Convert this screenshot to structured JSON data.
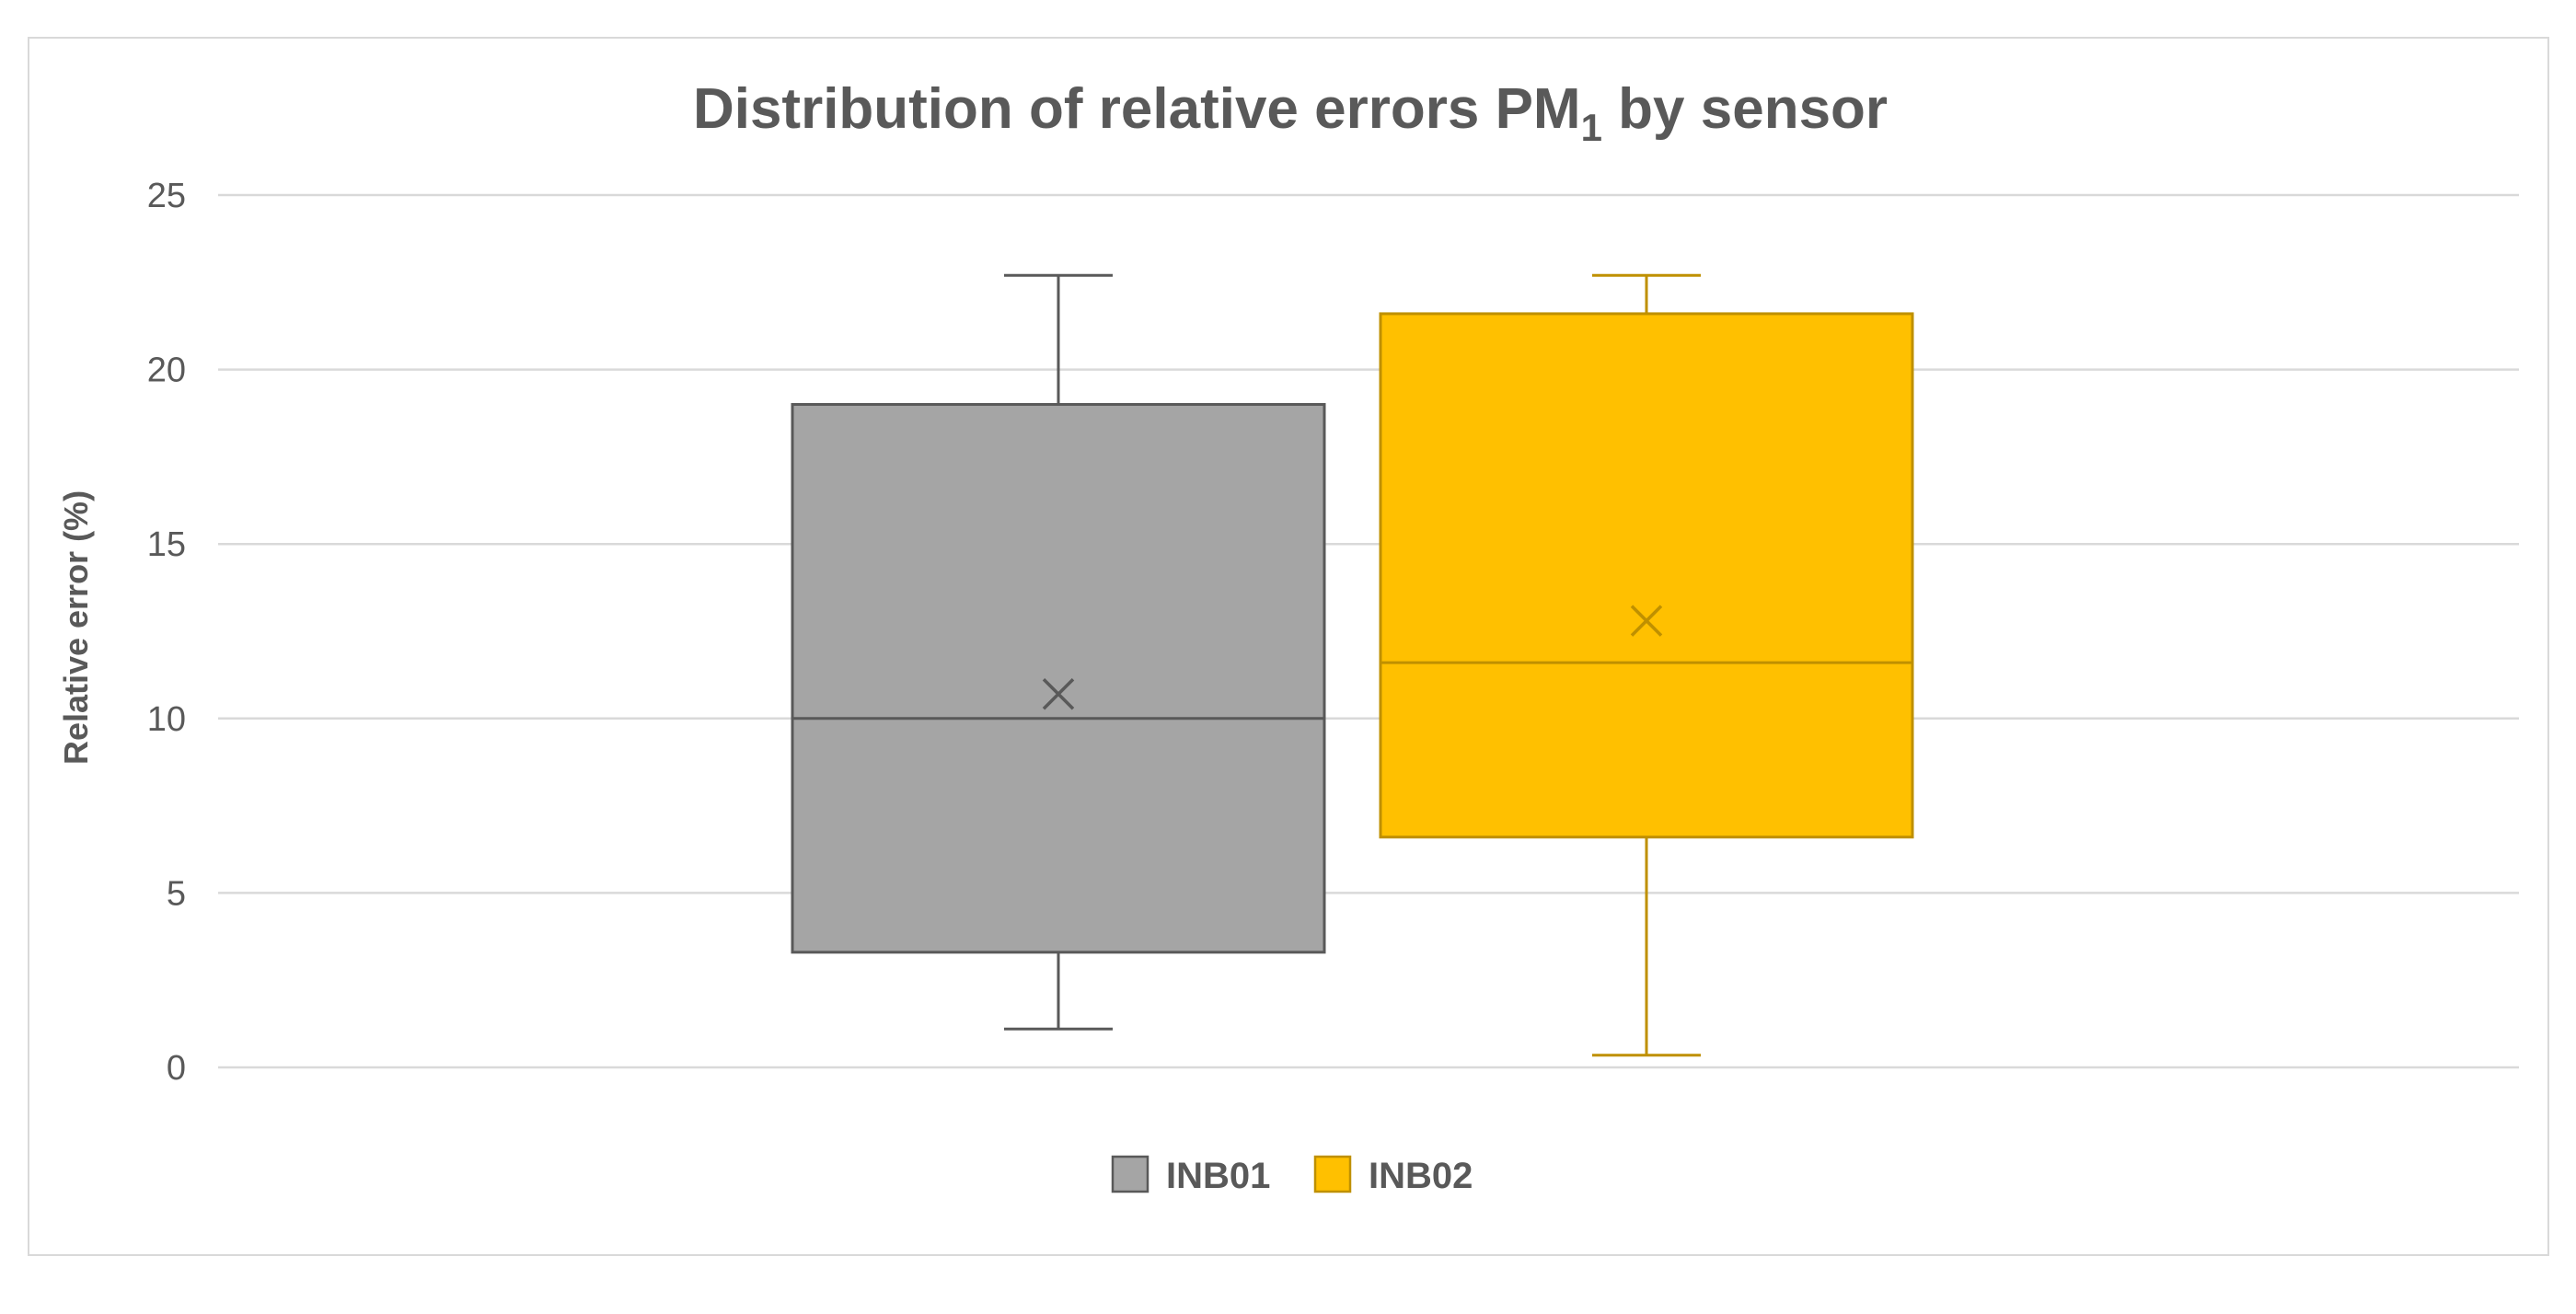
{
  "chart_data": {
    "type": "boxplot",
    "title": "Distribution of relative errors PM",
    "title_subscript": "1",
    "title_suffix": " by sensor",
    "xlabel": "",
    "ylabel": "Relative error (%)",
    "ylim": [
      0,
      25
    ],
    "yticks": [
      "0",
      "5",
      "10",
      "15",
      "20",
      "25"
    ],
    "grid": true,
    "legend_position": "bottom",
    "series": [
      {
        "name": "INB01",
        "color": "#a5a5a5",
        "stroke": "#595959",
        "min": 1.1,
        "q1": 3.3,
        "median": 10.0,
        "q3": 19.0,
        "max": 22.7,
        "mean": 10.7
      },
      {
        "name": "INB02",
        "color": "#ffc000",
        "stroke": "#bf9000",
        "min": 0.35,
        "q1": 6.6,
        "median": 11.6,
        "q3": 21.6,
        "max": 22.7,
        "mean": 12.8
      }
    ]
  }
}
